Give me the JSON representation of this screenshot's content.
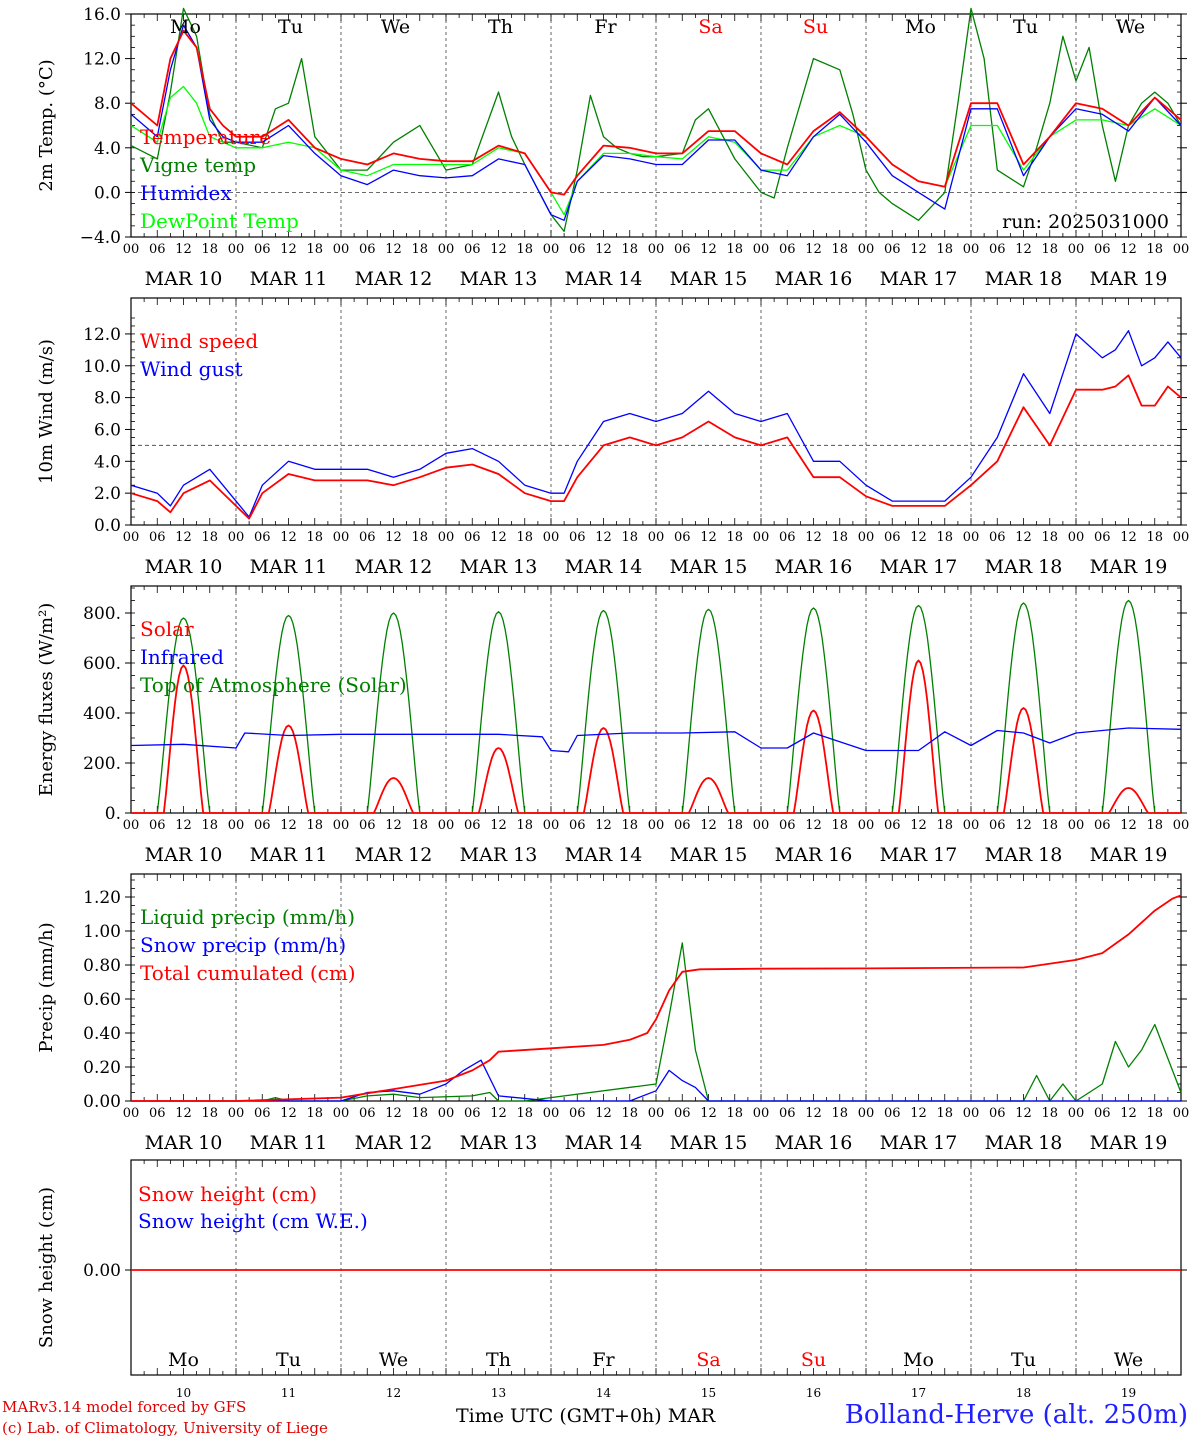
{
  "run_label": "run: 2025031000",
  "x_axis_title": "Time UTC (GMT+0h)",
  "month_label": "MAR",
  "station_label": "Bolland-Herve (alt. 250m)",
  "credit_lines": [
    "MARv3.14 model forced by GFS",
    "(c) Lab. of Climatology, University of Liege"
  ],
  "hour_ticks": [
    "00",
    "06",
    "12",
    "18"
  ],
  "day_labels": [
    "MAR 10",
    "MAR 11",
    "MAR 12",
    "MAR 13",
    "MAR 14",
    "MAR 15",
    "MAR 16",
    "MAR 17",
    "MAR 18",
    "MAR 19"
  ],
  "day_numbers": [
    "10",
    "11",
    "12",
    "13",
    "14",
    "15",
    "16",
    "17",
    "18",
    "19"
  ],
  "weekdays": [
    {
      "name": "Mo",
      "weekend": false
    },
    {
      "name": "Tu",
      "weekend": false
    },
    {
      "name": "We",
      "weekend": false
    },
    {
      "name": "Th",
      "weekend": false
    },
    {
      "name": "Fr",
      "weekend": false
    },
    {
      "name": "Sa",
      "weekend": true
    },
    {
      "name": "Su",
      "weekend": true
    },
    {
      "name": "Mo",
      "weekend": false
    },
    {
      "name": "Tu",
      "weekend": false
    },
    {
      "name": "We",
      "weekend": false
    }
  ],
  "colors": {
    "red": "#ff0000",
    "blue": "#0000ff",
    "dark_green": "#008000",
    "light_green": "#00ff00",
    "grid": "#555555",
    "axis": "#000000",
    "weekend": "#ff0000"
  },
  "chart_data": [
    {
      "type": "line",
      "ylabel": "2m Temp. (°C)",
      "ylim": [
        -4,
        16
      ],
      "yticks": [
        -4,
        0,
        4,
        8,
        12,
        16
      ],
      "ytick_labels": [
        "−4.0",
        "0.0",
        "4.0",
        "8.0",
        "12.0",
        "16.0"
      ],
      "reference_line": 0,
      "x_unit": "hours since MAR 10 00 UTC",
      "xlim": [
        0,
        240
      ],
      "series": [
        {
          "name": "Vigne temp",
          "color": "#008000",
          "x": [
            0,
            6,
            9,
            12,
            15,
            18,
            21,
            24,
            30,
            33,
            36,
            39,
            42,
            48,
            54,
            60,
            66,
            72,
            78,
            84,
            87,
            90,
            96,
            99,
            102,
            105,
            108,
            111,
            114,
            117,
            120,
            126,
            129,
            132,
            138,
            144,
            147,
            150,
            156,
            162,
            165,
            168,
            171,
            174,
            180,
            186,
            189,
            192,
            195,
            198,
            204,
            207,
            210,
            213,
            216,
            219,
            222,
            225,
            228,
            231,
            234,
            237,
            240
          ],
          "y": [
            4.2,
            3,
            9,
            16.5,
            14,
            7,
            4.5,
            4.5,
            4,
            7.5,
            8,
            12,
            5,
            2,
            2,
            4.5,
            6,
            2,
            2.5,
            9,
            5,
            2.5,
            -2,
            -3.5,
            2,
            8.7,
            5,
            4,
            3.5,
            3.2,
            3.2,
            3.5,
            6.5,
            7.5,
            3,
            0,
            -0.5,
            4,
            12,
            11,
            7,
            2,
            0,
            -1,
            -2.5,
            0,
            8,
            16.5,
            12,
            2,
            0.5,
            4,
            8,
            14,
            10,
            13,
            6,
            1,
            6,
            8,
            9,
            8,
            6
          ]
        },
        {
          "name": "DewPoint Temp",
          "color": "#00ff00",
          "x": [
            0,
            6,
            9,
            12,
            15,
            18,
            21,
            24,
            30,
            36,
            42,
            48,
            54,
            60,
            66,
            72,
            78,
            84,
            90,
            96,
            99,
            102,
            108,
            114,
            120,
            126,
            132,
            138,
            144,
            150,
            156,
            162,
            168,
            174,
            180,
            186,
            192,
            198,
            204,
            210,
            216,
            222,
            228,
            234,
            240
          ],
          "y": [
            6,
            4.5,
            8.5,
            9.5,
            8,
            5,
            4.5,
            4,
            4,
            4.5,
            4,
            2,
            1.5,
            2.5,
            2.5,
            2.5,
            2.5,
            4,
            3.5,
            0,
            -2,
            1,
            3.5,
            3.5,
            3.2,
            3,
            5,
            4.5,
            2,
            2,
            5,
            6,
            5,
            2.5,
            1,
            0.5,
            6,
            6,
            2,
            5,
            6.5,
            6.5,
            6,
            7.5,
            6
          ]
        },
        {
          "name": "Humidex",
          "color": "#0000ff",
          "x": [
            0,
            6,
            9,
            12,
            15,
            18,
            21,
            24,
            30,
            36,
            42,
            48,
            54,
            60,
            66,
            72,
            78,
            84,
            90,
            96,
            99,
            102,
            108,
            114,
            120,
            126,
            132,
            138,
            144,
            150,
            156,
            162,
            168,
            174,
            180,
            186,
            192,
            198,
            204,
            210,
            216,
            222,
            228,
            234,
            240
          ],
          "y": [
            7,
            5,
            11,
            15,
            13,
            6.5,
            5,
            4.5,
            4.5,
            6,
            3.5,
            1.5,
            0.7,
            2,
            1.5,
            1.3,
            1.5,
            3,
            2.5,
            -2,
            -2.5,
            1,
            3.3,
            3,
            2.5,
            2.5,
            4.7,
            4.7,
            2,
            1.5,
            5,
            7,
            4.5,
            1.5,
            0,
            -1.5,
            7.5,
            7.5,
            1.5,
            5,
            7.5,
            7,
            5.5,
            8.5,
            6
          ]
        },
        {
          "name": "Temperature",
          "color": "#ff0000",
          "x": [
            0,
            6,
            9,
            12,
            15,
            18,
            21,
            24,
            30,
            36,
            42,
            48,
            54,
            60,
            66,
            72,
            78,
            84,
            90,
            96,
            99,
            102,
            108,
            114,
            120,
            126,
            132,
            138,
            144,
            150,
            156,
            162,
            168,
            174,
            180,
            186,
            192,
            198,
            204,
            210,
            216,
            222,
            228,
            234,
            240
          ],
          "y": [
            8,
            6,
            12,
            14.5,
            13,
            7.5,
            6,
            5,
            5,
            6.5,
            4,
            3,
            2.5,
            3.5,
            3,
            2.8,
            2.8,
            4.2,
            3.5,
            0,
            -0.2,
            1.5,
            4.2,
            4,
            3.5,
            3.5,
            5.5,
            5.5,
            3.5,
            2.5,
            5.5,
            7.2,
            5,
            2.5,
            1,
            0.5,
            8,
            8,
            2.5,
            5,
            8,
            7.5,
            6,
            8.5,
            6.5
          ]
        }
      ],
      "legend": [
        {
          "label": "Temperature",
          "color": "#ff0000"
        },
        {
          "label": "Vigne temp",
          "color": "#008000"
        },
        {
          "label": "Humidex",
          "color": "#0000ff"
        },
        {
          "label": "DewPoint Temp",
          "color": "#00ff00"
        }
      ]
    },
    {
      "type": "line",
      "ylabel": "10m Wind (m/s)",
      "ylim": [
        0,
        13
      ],
      "yticks": [
        0,
        2,
        4,
        6,
        8,
        10,
        12
      ],
      "ytick_labels": [
        "0.0",
        "2.0",
        "4.0",
        "6.0",
        "8.0",
        "10.0",
        "12.0"
      ],
      "reference_line": 5,
      "xlim": [
        0,
        240
      ],
      "series": [
        {
          "name": "Wind gust",
          "color": "#0000ff",
          "x": [
            0,
            6,
            9,
            12,
            18,
            24,
            27,
            30,
            36,
            42,
            48,
            54,
            60,
            66,
            72,
            78,
            84,
            90,
            96,
            99,
            102,
            108,
            114,
            120,
            126,
            132,
            138,
            144,
            150,
            156,
            162,
            168,
            174,
            180,
            186,
            192,
            198,
            204,
            210,
            216,
            222,
            225,
            228,
            231,
            234,
            237,
            240
          ],
          "y": [
            2.5,
            2,
            1.2,
            2.5,
            3.5,
            1.5,
            0.5,
            2.5,
            4,
            3.5,
            3.5,
            3.5,
            3,
            3.5,
            4.5,
            4.8,
            4,
            2.5,
            2,
            2,
            4,
            6.5,
            7,
            6.5,
            7,
            8.4,
            7,
            6.5,
            7,
            4,
            4,
            2.5,
            1.5,
            1.5,
            1.5,
            3,
            5.5,
            9.5,
            7,
            12,
            10.5,
            11,
            12.2,
            10,
            10.5,
            11.5,
            10.5
          ]
        },
        {
          "name": "Wind speed",
          "color": "#ff0000",
          "x": [
            0,
            6,
            9,
            12,
            18,
            24,
            27,
            30,
            36,
            42,
            48,
            54,
            60,
            66,
            72,
            78,
            84,
            90,
            96,
            99,
            102,
            108,
            114,
            120,
            126,
            132,
            138,
            144,
            150,
            156,
            162,
            168,
            174,
            180,
            186,
            192,
            198,
            204,
            210,
            216,
            222,
            225,
            228,
            231,
            234,
            237,
            240
          ],
          "y": [
            2,
            1.5,
            0.8,
            2,
            2.8,
            1.2,
            0.4,
            2,
            3.2,
            2.8,
            2.8,
            2.8,
            2.5,
            3,
            3.6,
            3.8,
            3.2,
            2,
            1.5,
            1.5,
            3,
            5,
            5.5,
            5,
            5.5,
            6.5,
            5.5,
            5,
            5.5,
            3,
            3,
            1.8,
            1.2,
            1.2,
            1.2,
            2.5,
            4,
            7.4,
            5,
            8.5,
            8.5,
            8.7,
            9.4,
            7.5,
            7.5,
            8.7,
            8
          ]
        }
      ],
      "legend": [
        {
          "label": "Wind speed",
          "color": "#ff0000"
        },
        {
          "label": "Wind gust",
          "color": "#0000ff"
        }
      ]
    },
    {
      "type": "line",
      "ylabel": "Energy fluxes (W/m²)",
      "ylim": [
        0,
        900
      ],
      "yticks": [
        0,
        200,
        400,
        600,
        800
      ],
      "ytick_labels": [
        "0.",
        "200.",
        "400.",
        "600.",
        "800."
      ],
      "xlim": [
        0,
        240
      ],
      "series": [
        {
          "name": "Top of Atmosphere (Solar)",
          "color": "#008000",
          "toa_peaks": [
            780,
            790,
            800,
            805,
            810,
            815,
            820,
            830,
            840,
            850
          ]
        },
        {
          "name": "Solar",
          "color": "#ff0000",
          "solar_peaks": [
            590,
            350,
            140,
            260,
            340,
            140,
            410,
            610,
            420,
            100
          ]
        },
        {
          "name": "Infrared",
          "color": "#0000ff",
          "x": [
            0,
            12,
            24,
            26,
            36,
            48,
            60,
            72,
            84,
            94,
            96,
            100,
            102,
            114,
            126,
            138,
            144,
            150,
            156,
            168,
            180,
            186,
            192,
            198,
            204,
            210,
            216,
            228,
            240
          ],
          "y": [
            270,
            275,
            260,
            320,
            310,
            315,
            315,
            315,
            315,
            305,
            250,
            245,
            310,
            320,
            320,
            325,
            260,
            260,
            320,
            250,
            250,
            325,
            270,
            330,
            320,
            280,
            320,
            340,
            335
          ]
        }
      ],
      "legend": [
        {
          "label": "Solar",
          "color": "#ff0000"
        },
        {
          "label": "Infrared",
          "color": "#0000ff"
        },
        {
          "label": "Top of Atmosphere (Solar)",
          "color": "#008000"
        }
      ]
    },
    {
      "type": "line",
      "ylabel": "Precip (mm/h)",
      "ylim": [
        0,
        1.3
      ],
      "yticks": [
        0,
        0.2,
        0.4,
        0.6,
        0.8,
        1.0,
        1.2
      ],
      "ytick_labels": [
        "0.00",
        "0.20",
        "0.40",
        "0.60",
        "0.80",
        "1.00",
        "1.20"
      ],
      "xlim": [
        0,
        240
      ],
      "series": [
        {
          "name": "Liquid precip (mm/h)",
          "color": "#008000",
          "x": [
            0,
            30,
            33,
            36,
            48,
            54,
            60,
            66,
            78,
            82,
            84,
            90,
            120,
            123,
            126,
            129,
            132,
            204,
            207,
            210,
            213,
            216,
            222,
            225,
            228,
            231,
            234,
            237,
            240
          ],
          "y": [
            0,
            0,
            0.02,
            0,
            0,
            0.03,
            0.04,
            0.02,
            0.03,
            0.05,
            0,
            0,
            0.1,
            0.5,
            0.93,
            0.3,
            0,
            0,
            0.15,
            0,
            0.1,
            0,
            0.1,
            0.35,
            0.2,
            0.3,
            0.45,
            0.25,
            0.05
          ]
        },
        {
          "name": "Snow precip (mm/h)",
          "color": "#0000ff",
          "x": [
            0,
            48,
            54,
            60,
            66,
            72,
            76,
            80,
            84,
            96,
            114,
            120,
            123,
            126,
            129,
            132,
            240
          ],
          "y": [
            0,
            0,
            0.05,
            0.06,
            0.04,
            0.1,
            0.18,
            0.24,
            0.03,
            0,
            0,
            0.06,
            0.18,
            0.12,
            0.08,
            0,
            0
          ]
        },
        {
          "name": "Total cumulated (cm)",
          "color": "#ff0000",
          "x": [
            0,
            24,
            48,
            60,
            72,
            78,
            82,
            84,
            96,
            108,
            114,
            118,
            120,
            123,
            126,
            130,
            144,
            168,
            204,
            216,
            222,
            228,
            234,
            238,
            240
          ],
          "y": [
            0,
            0,
            0.02,
            0.07,
            0.12,
            0.18,
            0.24,
            0.29,
            0.31,
            0.33,
            0.36,
            0.4,
            0.48,
            0.65,
            0.76,
            0.775,
            0.778,
            0.78,
            0.785,
            0.83,
            0.87,
            0.98,
            1.12,
            1.19,
            1.21
          ]
        }
      ],
      "legend": [
        {
          "label": "Liquid precip (mm/h)",
          "color": "#008000"
        },
        {
          "label": "Snow precip (mm/h)",
          "color": "#0000ff"
        },
        {
          "label": "Total cumulated (cm)",
          "color": "#ff0000"
        }
      ]
    },
    {
      "type": "line",
      "ylabel": "Snow height (cm)",
      "yticks": [
        0
      ],
      "ytick_labels": [
        "0.00"
      ],
      "xlim": [
        0,
        240
      ],
      "series": [
        {
          "name": "Snow height (cm)",
          "color": "#ff0000",
          "x": [
            0,
            240
          ],
          "y": [
            0,
            0
          ]
        }
      ],
      "legend": [
        {
          "label": "Snow height (cm)",
          "color": "#ff0000"
        },
        {
          "label": "Snow height (cm W.E.)",
          "color": "#0000ff"
        }
      ]
    }
  ]
}
